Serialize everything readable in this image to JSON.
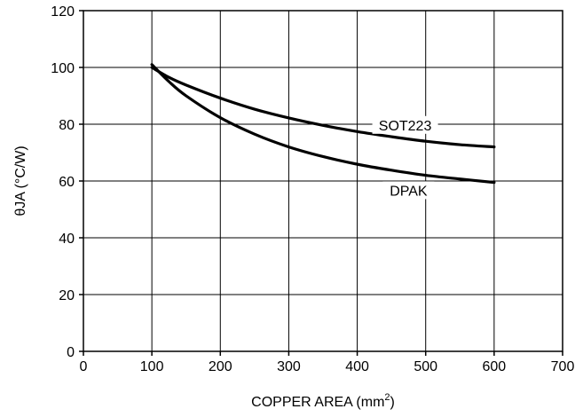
{
  "chart_data": {
    "type": "line",
    "xlabel_main": "COPPER AREA (mm",
    "xlabel_sup": "2",
    "xlabel_tail": ")",
    "ylabel": "θJA (°C/W)",
    "xlim": [
      0,
      700
    ],
    "ylim": [
      0,
      120
    ],
    "x_ticks": [
      "0",
      "100",
      "200",
      "300",
      "400",
      "500",
      "600",
      "700"
    ],
    "y_ticks": [
      "0",
      "20",
      "40",
      "60",
      "80",
      "100",
      "120"
    ],
    "grid": true,
    "series": [
      {
        "name": "SOT223",
        "x": [
          100,
          125,
          150,
          200,
          250,
          300,
          350,
          400,
          450,
          500,
          550,
          600
        ],
        "y": [
          100,
          96.5,
          93.8,
          89.2,
          85.3,
          82.2,
          79.6,
          77.4,
          75.6,
          74.0,
          72.8,
          72.0
        ]
      },
      {
        "name": "DPAK",
        "x": [
          100,
          125,
          150,
          200,
          250,
          300,
          350,
          400,
          450,
          500,
          550,
          600
        ],
        "y": [
          101,
          95.0,
          90.0,
          82.3,
          76.5,
          72.0,
          68.6,
          65.9,
          63.8,
          62.0,
          60.7,
          59.5
        ]
      }
    ],
    "annotations": [
      {
        "text": "SOT223",
        "series": "SOT223"
      },
      {
        "text": "DPAK",
        "series": "DPAK"
      }
    ]
  }
}
